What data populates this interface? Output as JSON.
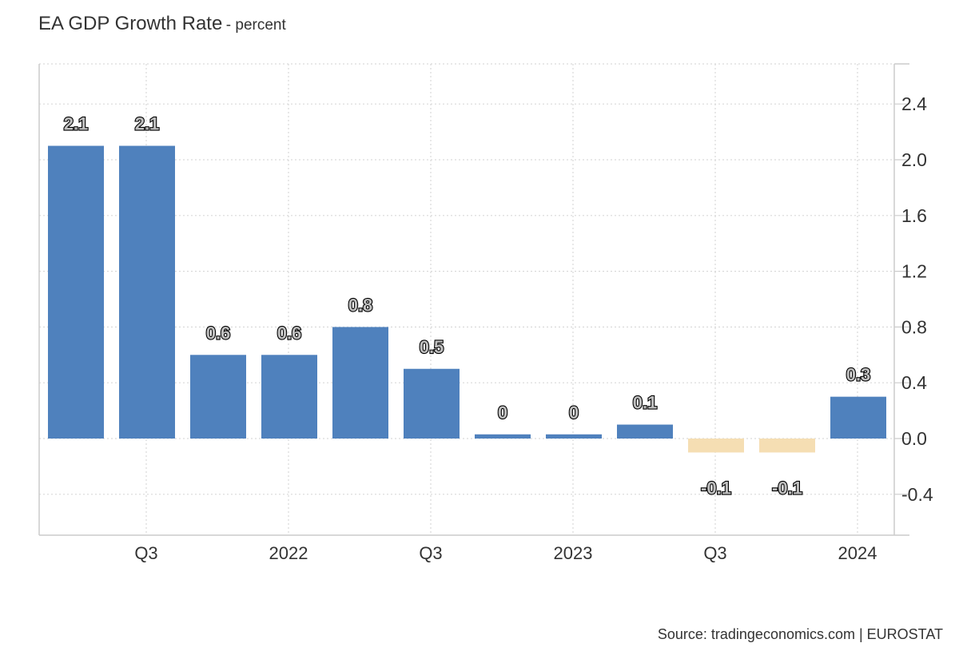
{
  "chart_data": {
    "type": "bar",
    "title": "EA GDP Growth Rate",
    "subtitle": "- percent",
    "x_tick_labels": [
      "Q3",
      "2022",
      "Q3",
      "2023",
      "Q3",
      "2024"
    ],
    "values": [
      2.1,
      2.1,
      0.6,
      0.6,
      0.8,
      0.5,
      0.03,
      0.03,
      0.1,
      -0.1,
      -0.1,
      0.3
    ],
    "value_labels": [
      "2.1",
      "2.1",
      "0.6",
      "0.6",
      "0.8",
      "0.5",
      "0",
      "0",
      "0.1",
      "-0.1",
      "-0.1",
      "0.3"
    ],
    "yticks": [
      -0.4,
      0.0,
      0.4,
      0.8,
      1.2,
      1.6,
      2.0,
      2.4
    ],
    "ytick_labels": [
      "-0.4",
      "0.0",
      "0.4",
      "0.8",
      "1.2",
      "1.6",
      "2.0",
      "2.4"
    ],
    "ylim": [
      -0.72,
      2.7
    ],
    "positive_color": "#4f81bd",
    "negative_color": "#f5deb3",
    "grid": true,
    "legend": "none"
  },
  "source": "Source: tradingeconomics.com | EUROSTAT"
}
